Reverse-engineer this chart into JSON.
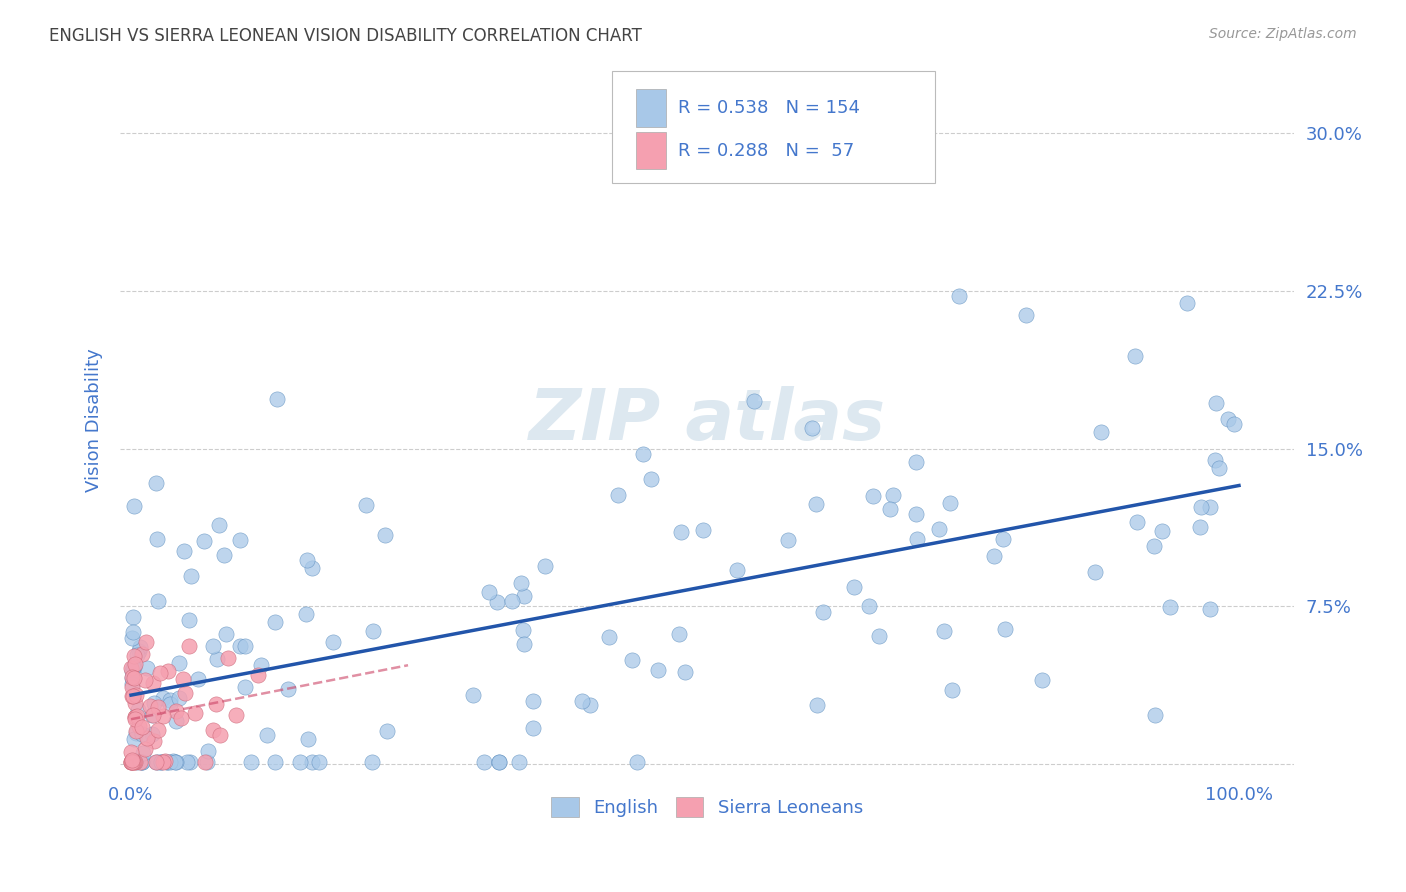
{
  "title": "ENGLISH VS SIERRA LEONEAN VISION DISABILITY CORRELATION CHART",
  "source": "Source: ZipAtlas.com",
  "ylabel": "Vision Disability",
  "y_ticks": [
    0.0,
    0.075,
    0.15,
    0.225,
    0.3
  ],
  "y_tick_labels": [
    "",
    "7.5%",
    "15.0%",
    "22.5%",
    "30.0%"
  ],
  "xlim": [
    -0.01,
    1.05
  ],
  "ylim": [
    -0.008,
    0.335
  ],
  "english_R": 0.538,
  "english_N": 154,
  "sierra_R": 0.288,
  "sierra_N": 57,
  "english_color": "#a8c8e8",
  "english_edge_color": "#5588bb",
  "english_line_color": "#2255aa",
  "sierra_color": "#f5a0b0",
  "sierra_edge_color": "#cc6677",
  "sierra_line_color": "#cc4466",
  "legend_labels": [
    "English",
    "Sierra Leoneans"
  ],
  "background_color": "#ffffff",
  "grid_color": "#c8c8c8",
  "title_color": "#444444",
  "axis_color": "#4477cc",
  "watermark_color": "#dde8f0"
}
